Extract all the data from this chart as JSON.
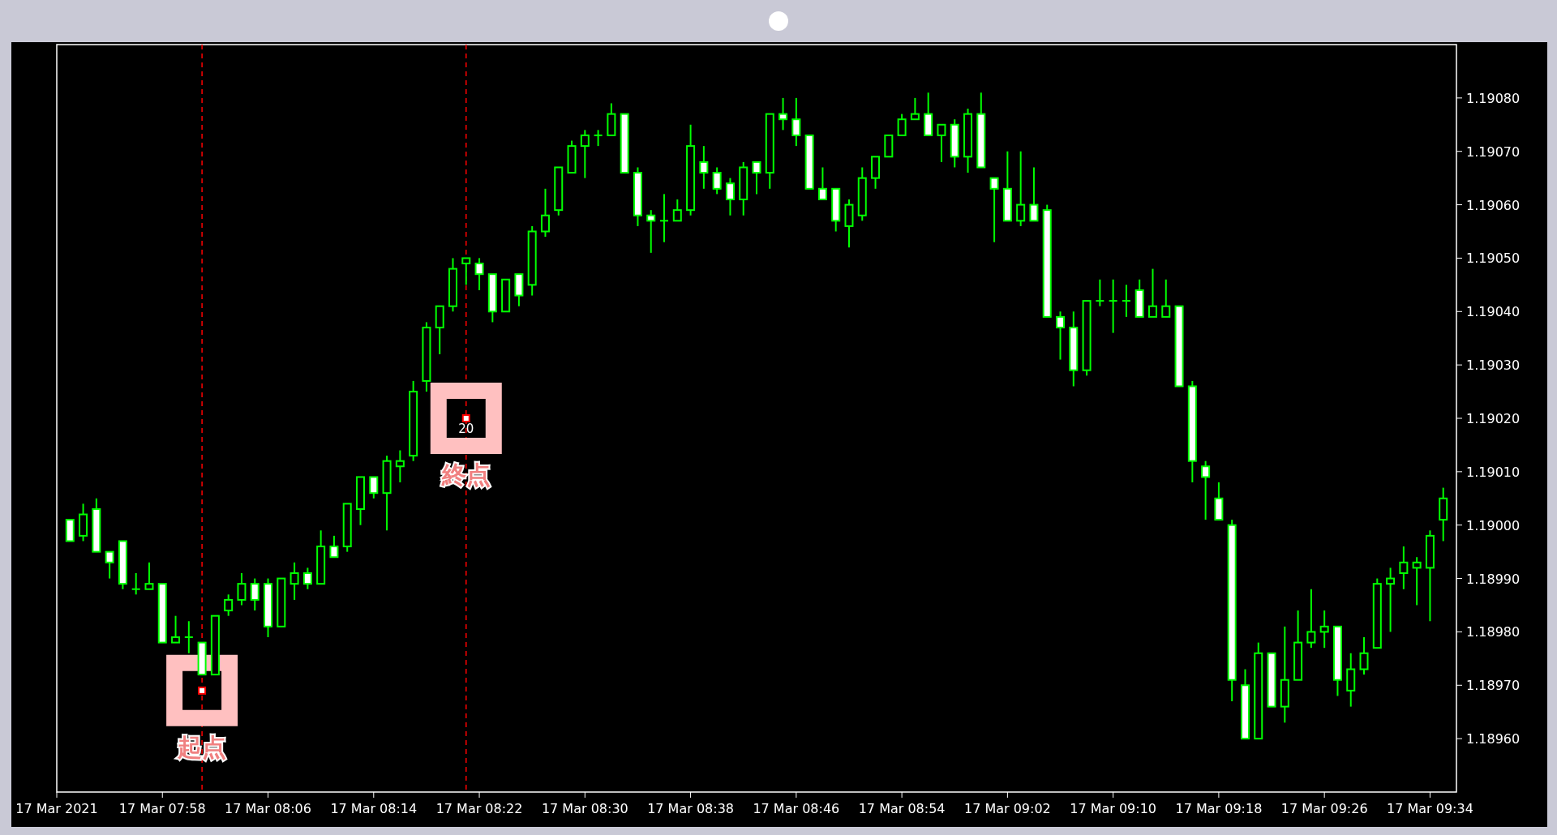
{
  "chart_data": {
    "type": "candlestick",
    "xlim": [
      "2021-03-17T07:50",
      "2021-03-17T09:36"
    ],
    "xticks": [
      {
        "value": "2021-03-17T07:50",
        "label": "17 Mar 2021"
      },
      {
        "value": "2021-03-17T07:58",
        "label": "17 Mar 07:58"
      },
      {
        "value": "2021-03-17T08:06",
        "label": "17 Mar 08:06"
      },
      {
        "value": "2021-03-17T08:14",
        "label": "17 Mar 08:14"
      },
      {
        "value": "2021-03-17T08:22",
        "label": "17 Mar 08:22"
      },
      {
        "value": "2021-03-17T08:30",
        "label": "17 Mar 08:30"
      },
      {
        "value": "2021-03-17T08:38",
        "label": "17 Mar 08:38"
      },
      {
        "value": "2021-03-17T08:46",
        "label": "17 Mar 08:46"
      },
      {
        "value": "2021-03-17T08:54",
        "label": "17 Mar 08:54"
      },
      {
        "value": "2021-03-17T09:02",
        "label": "17 Mar 09:02"
      },
      {
        "value": "2021-03-17T09:10",
        "label": "17 Mar 09:10"
      },
      {
        "value": "2021-03-17T09:18",
        "label": "17 Mar 09:18"
      },
      {
        "value": "2021-03-17T09:26",
        "label": "17 Mar 09:26"
      },
      {
        "value": "2021-03-17T09:34",
        "label": "17 Mar 09:34"
      }
    ],
    "ylim": [
      1.1895,
      1.1909
    ],
    "yticks": [
      {
        "value": 1.1896,
        "label": "1.18960"
      },
      {
        "value": 1.1897,
        "label": "1.18970"
      },
      {
        "value": 1.1898,
        "label": "1.18980"
      },
      {
        "value": 1.1899,
        "label": "1.18990"
      },
      {
        "value": 1.19,
        "label": "1.19000"
      },
      {
        "value": 1.1901,
        "label": "1.19010"
      },
      {
        "value": 1.1902,
        "label": "1.19020"
      },
      {
        "value": 1.1903,
        "label": "1.19030"
      },
      {
        "value": 1.1904,
        "label": "1.19040"
      },
      {
        "value": 1.1905,
        "label": "1.19050"
      },
      {
        "value": 1.1906,
        "label": "1.19060"
      },
      {
        "value": 1.1907,
        "label": "1.19070"
      },
      {
        "value": 1.1908,
        "label": "1.19080"
      }
    ],
    "series": [
      {
        "type": "candlestick",
        "color": "#00ff00",
        "x": [
          "2021-03-17T07:51",
          "2021-03-17T07:52",
          "2021-03-17T07:53",
          "2021-03-17T07:54",
          "2021-03-17T07:55",
          "2021-03-17T07:56",
          "2021-03-17T07:57",
          "2021-03-17T07:58",
          "2021-03-17T07:59",
          "2021-03-17T08:00",
          "2021-03-17T08:01",
          "2021-03-17T08:02",
          "2021-03-17T08:03",
          "2021-03-17T08:04",
          "2021-03-17T08:05",
          "2021-03-17T08:06",
          "2021-03-17T08:07",
          "2021-03-17T08:08",
          "2021-03-17T08:09",
          "2021-03-17T08:10",
          "2021-03-17T08:11",
          "2021-03-17T08:12",
          "2021-03-17T08:13",
          "2021-03-17T08:14",
          "2021-03-17T08:15",
          "2021-03-17T08:16",
          "2021-03-17T08:17",
          "2021-03-17T08:18",
          "2021-03-17T08:19",
          "2021-03-17T08:20",
          "2021-03-17T08:21",
          "2021-03-17T08:22",
          "2021-03-17T08:23",
          "2021-03-17T08:24",
          "2021-03-17T08:25",
          "2021-03-17T08:26",
          "2021-03-17T08:27",
          "2021-03-17T08:28",
          "2021-03-17T08:29",
          "2021-03-17T08:30",
          "2021-03-17T08:31",
          "2021-03-17T08:32",
          "2021-03-17T08:33",
          "2021-03-17T08:34",
          "2021-03-17T08:35",
          "2021-03-17T08:36",
          "2021-03-17T08:37",
          "2021-03-17T08:38",
          "2021-03-17T08:39",
          "2021-03-17T08:40",
          "2021-03-17T08:41",
          "2021-03-17T08:42",
          "2021-03-17T08:43",
          "2021-03-17T08:44",
          "2021-03-17T08:45",
          "2021-03-17T08:46",
          "2021-03-17T08:47",
          "2021-03-17T08:48",
          "2021-03-17T08:49",
          "2021-03-17T08:50",
          "2021-03-17T08:51",
          "2021-03-17T08:52",
          "2021-03-17T08:53",
          "2021-03-17T08:54",
          "2021-03-17T08:55",
          "2021-03-17T08:56",
          "2021-03-17T08:57",
          "2021-03-17T08:58",
          "2021-03-17T08:59",
          "2021-03-17T09:00",
          "2021-03-17T09:01",
          "2021-03-17T09:02",
          "2021-03-17T09:03",
          "2021-03-17T09:04",
          "2021-03-17T09:05",
          "2021-03-17T09:06",
          "2021-03-17T09:07",
          "2021-03-17T09:08",
          "2021-03-17T09:09",
          "2021-03-17T09:10",
          "2021-03-17T09:11",
          "2021-03-17T09:12",
          "2021-03-17T09:13",
          "2021-03-17T09:14",
          "2021-03-17T09:15",
          "2021-03-17T09:16",
          "2021-03-17T09:17",
          "2021-03-17T09:18",
          "2021-03-17T09:19",
          "2021-03-17T09:20",
          "2021-03-17T09:21",
          "2021-03-17T09:22",
          "2021-03-17T09:23",
          "2021-03-17T09:24",
          "2021-03-17T09:25",
          "2021-03-17T09:26",
          "2021-03-17T09:27",
          "2021-03-17T09:28",
          "2021-03-17T09:29",
          "2021-03-17T09:30",
          "2021-03-17T09:31",
          "2021-03-17T09:32",
          "2021-03-17T09:33",
          "2021-03-17T09:34",
          "2021-03-17T09:35"
        ],
        "ohlc": [
          [
            1.19001,
            1.19001,
            1.18997,
            1.18997
          ],
          [
            1.18998,
            1.19004,
            1.18997,
            1.19002
          ],
          [
            1.19003,
            1.19005,
            1.18995,
            1.18995
          ],
          [
            1.18995,
            1.18995,
            1.1899,
            1.18993
          ],
          [
            1.18997,
            1.18997,
            1.18988,
            1.18989
          ],
          [
            1.18988,
            1.18991,
            1.18987,
            1.18988
          ],
          [
            1.18988,
            1.18993,
            1.18988,
            1.18989
          ],
          [
            1.18989,
            1.18989,
            1.18978,
            1.18978
          ],
          [
            1.18978,
            1.18983,
            1.18978,
            1.18979
          ],
          [
            1.18979,
            1.18982,
            1.18976,
            1.18979
          ],
          [
            1.18978,
            1.18978,
            1.18972,
            1.18972
          ],
          [
            1.18972,
            1.18983,
            1.18972,
            1.18983
          ],
          [
            1.18984,
            1.18987,
            1.18983,
            1.18986
          ],
          [
            1.18986,
            1.18991,
            1.18985,
            1.18989
          ],
          [
            1.18989,
            1.1899,
            1.18984,
            1.18986
          ],
          [
            1.18989,
            1.1899,
            1.18979,
            1.18981
          ],
          [
            1.18981,
            1.1899,
            1.18981,
            1.1899
          ],
          [
            1.18989,
            1.18993,
            1.18986,
            1.18991
          ],
          [
            1.18991,
            1.18992,
            1.18988,
            1.18989
          ],
          [
            1.18989,
            1.18999,
            1.18989,
            1.18996
          ],
          [
            1.18996,
            1.18998,
            1.18994,
            1.18994
          ],
          [
            1.18996,
            1.19004,
            1.18995,
            1.19004
          ],
          [
            1.19003,
            1.19009,
            1.19,
            1.19009
          ],
          [
            1.19009,
            1.19009,
            1.19005,
            1.19006
          ],
          [
            1.19006,
            1.19013,
            1.18999,
            1.19012
          ],
          [
            1.19011,
            1.19014,
            1.19008,
            1.19012
          ],
          [
            1.19013,
            1.19027,
            1.19012,
            1.19025
          ],
          [
            1.19027,
            1.19038,
            1.19025,
            1.19037
          ],
          [
            1.19037,
            1.19041,
            1.19032,
            1.19041
          ],
          [
            1.19041,
            1.1905,
            1.1904,
            1.19048
          ],
          [
            1.19049,
            1.1905,
            1.19045,
            1.1905
          ],
          [
            1.19049,
            1.1905,
            1.19044,
            1.19047
          ],
          [
            1.19047,
            1.19047,
            1.19038,
            1.1904
          ],
          [
            1.1904,
            1.19046,
            1.1904,
            1.19046
          ],
          [
            1.19047,
            1.19047,
            1.19041,
            1.19043
          ],
          [
            1.19045,
            1.19056,
            1.19043,
            1.19055
          ],
          [
            1.19055,
            1.19063,
            1.19054,
            1.19058
          ],
          [
            1.19059,
            1.19067,
            1.19058,
            1.19067
          ],
          [
            1.19066,
            1.19072,
            1.19066,
            1.19071
          ],
          [
            1.19071,
            1.19074,
            1.19065,
            1.19073
          ],
          [
            1.19073,
            1.19074,
            1.19071,
            1.19073
          ],
          [
            1.19073,
            1.19079,
            1.19073,
            1.19077
          ],
          [
            1.19077,
            1.19077,
            1.19066,
            1.19066
          ],
          [
            1.19066,
            1.19067,
            1.19056,
            1.19058
          ],
          [
            1.19058,
            1.19059,
            1.19051,
            1.19057
          ],
          [
            1.19057,
            1.19062,
            1.19053,
            1.19057
          ],
          [
            1.19057,
            1.19061,
            1.19057,
            1.19059
          ],
          [
            1.19059,
            1.19075,
            1.19058,
            1.19071
          ],
          [
            1.19068,
            1.19071,
            1.19063,
            1.19066
          ],
          [
            1.19066,
            1.19067,
            1.19062,
            1.19063
          ],
          [
            1.19064,
            1.19065,
            1.19058,
            1.19061
          ],
          [
            1.19061,
            1.19068,
            1.19058,
            1.19067
          ],
          [
            1.19068,
            1.19068,
            1.19062,
            1.19066
          ],
          [
            1.19066,
            1.19077,
            1.19063,
            1.19077
          ],
          [
            1.19077,
            1.1908,
            1.19074,
            1.19076
          ],
          [
            1.19076,
            1.1908,
            1.19071,
            1.19073
          ],
          [
            1.19073,
            1.19073,
            1.19063,
            1.19063
          ],
          [
            1.19063,
            1.19067,
            1.19061,
            1.19061
          ],
          [
            1.19063,
            1.19063,
            1.19055,
            1.19057
          ],
          [
            1.19056,
            1.19061,
            1.19052,
            1.1906
          ],
          [
            1.19058,
            1.19067,
            1.19057,
            1.19065
          ],
          [
            1.19065,
            1.19069,
            1.19063,
            1.19069
          ],
          [
            1.19069,
            1.19073,
            1.19069,
            1.19073
          ],
          [
            1.19073,
            1.19077,
            1.19073,
            1.19076
          ],
          [
            1.19076,
            1.1908,
            1.19076,
            1.19077
          ],
          [
            1.19077,
            1.19081,
            1.19073,
            1.19073
          ],
          [
            1.19073,
            1.19075,
            1.19068,
            1.19075
          ],
          [
            1.19075,
            1.19076,
            1.19067,
            1.19069
          ],
          [
            1.19069,
            1.19078,
            1.19066,
            1.19077
          ],
          [
            1.19077,
            1.19081,
            1.19067,
            1.19067
          ],
          [
            1.19065,
            1.19065,
            1.19053,
            1.19063
          ],
          [
            1.19063,
            1.1907,
            1.19057,
            1.19057
          ],
          [
            1.19057,
            1.1907,
            1.19056,
            1.1906
          ],
          [
            1.1906,
            1.19067,
            1.19057,
            1.19057
          ],
          [
            1.19059,
            1.1906,
            1.19039,
            1.19039
          ],
          [
            1.19039,
            1.1904,
            1.19031,
            1.19037
          ],
          [
            1.19037,
            1.1904,
            1.19026,
            1.19029
          ],
          [
            1.19029,
            1.19042,
            1.19028,
            1.19042
          ],
          [
            1.19042,
            1.19046,
            1.19041,
            1.19042
          ],
          [
            1.19042,
            1.19046,
            1.19036,
            1.19042
          ],
          [
            1.19042,
            1.19045,
            1.19039,
            1.19042
          ],
          [
            1.19044,
            1.19046,
            1.19039,
            1.19039
          ],
          [
            1.19039,
            1.19048,
            1.19039,
            1.19041
          ],
          [
            1.19039,
            1.19046,
            1.19039,
            1.19041
          ],
          [
            1.19041,
            1.19041,
            1.19026,
            1.19026
          ],
          [
            1.19026,
            1.19027,
            1.19008,
            1.19012
          ],
          [
            1.19011,
            1.19012,
            1.19001,
            1.19009
          ],
          [
            1.19005,
            1.19008,
            1.19001,
            1.19001
          ],
          [
            1.19,
            1.19001,
            1.18967,
            1.18971
          ],
          [
            1.1897,
            1.18973,
            1.1896,
            1.1896
          ],
          [
            1.1896,
            1.18978,
            1.1896,
            1.18976
          ],
          [
            1.18976,
            1.18976,
            1.18966,
            1.18966
          ],
          [
            1.18966,
            1.18981,
            1.18963,
            1.18971
          ],
          [
            1.18971,
            1.18984,
            1.18971,
            1.18978
          ],
          [
            1.18978,
            1.18988,
            1.18977,
            1.1898
          ],
          [
            1.1898,
            1.18984,
            1.18977,
            1.18981
          ],
          [
            1.18981,
            1.18981,
            1.18968,
            1.18971
          ],
          [
            1.18969,
            1.18976,
            1.18966,
            1.18973
          ],
          [
            1.18973,
            1.18979,
            1.18972,
            1.18976
          ],
          [
            1.18977,
            1.1899,
            1.18977,
            1.18989
          ],
          [
            1.18989,
            1.18992,
            1.1898,
            1.1899
          ],
          [
            1.18991,
            1.18996,
            1.18988,
            1.18993
          ],
          [
            1.18992,
            1.18994,
            1.18985,
            1.18993
          ],
          [
            1.18992,
            1.18999,
            1.18982,
            1.18998
          ],
          [
            1.19001,
            1.19007,
            1.18997,
            1.19005
          ]
        ]
      },
      {
        "type": "scatter",
        "color": "#ff0000",
        "marker": "square",
        "x": [
          "2021-03-17T08:01",
          "2021-03-17T08:21"
        ],
        "values": [
          1.18969,
          1.1902
        ]
      }
    ],
    "ref_lines": [
      {
        "axis": "x",
        "value": "2021-03-17T08:01",
        "label": "起点",
        "color": "#ff0000",
        "line_style": "dashed"
      },
      {
        "axis": "x",
        "value": "2021-03-17T08:21",
        "label": "終点",
        "color": "#ff0000",
        "line_style": "dashed"
      }
    ],
    "annotations": [
      {
        "text": "20",
        "x": "2021-03-17T08:21",
        "y": 1.19018
      }
    ]
  }
}
